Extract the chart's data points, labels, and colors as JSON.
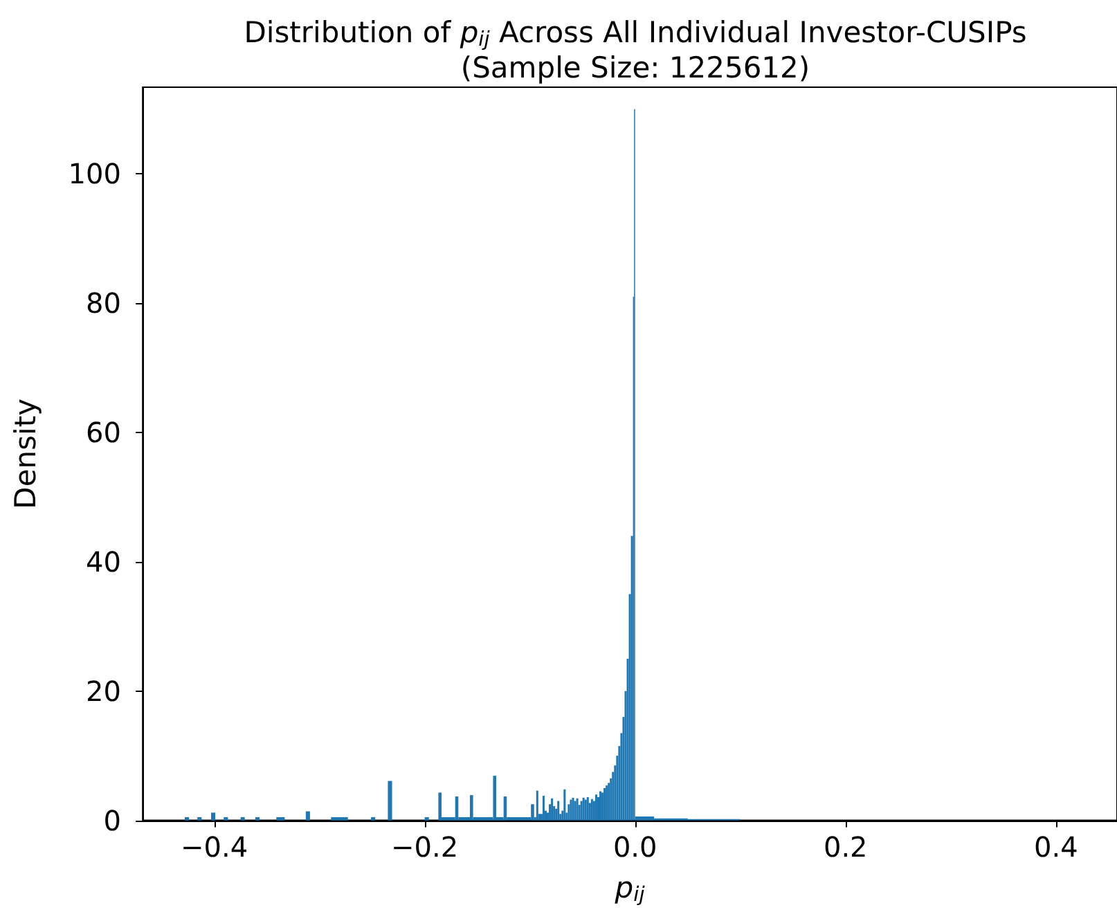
{
  "chart_data": {
    "type": "histogram",
    "title": "Distribution of p$_{ij}$ Across All Individual Investor-CUSIPs\n(Sample Size: 1225612)",
    "xlabel": "p$_{ij}$",
    "ylabel": "Density",
    "color": "#1f77b4",
    "bins": [
      -0.428,
      -0.424,
      -0.416,
      -0.412,
      -0.403,
      -0.399,
      -0.391,
      -0.387,
      -0.375,
      -0.371,
      -0.361,
      -0.357,
      -0.341,
      -0.333,
      -0.313,
      -0.309,
      -0.289,
      -0.273,
      -0.251,
      -0.247,
      -0.235,
      -0.231,
      -0.2,
      -0.196,
      -0.187,
      -0.184,
      -0.171,
      -0.168,
      -0.157,
      -0.154,
      -0.135,
      -0.132,
      -0.125,
      -0.122,
      -0.099,
      -0.096,
      -0.094,
      -0.092,
      -0.088,
      -0.086,
      -0.084,
      -0.082,
      -0.08,
      -0.078,
      -0.076,
      -0.074,
      -0.072,
      -0.07,
      -0.068,
      -0.066,
      -0.064,
      -0.062,
      -0.06,
      -0.058,
      -0.056,
      -0.054,
      -0.052,
      -0.05,
      -0.048,
      -0.046,
      -0.044,
      -0.042,
      -0.04,
      -0.038,
      -0.036,
      -0.034,
      -0.032,
      -0.03,
      -0.028,
      -0.026,
      -0.024,
      -0.022,
      -0.02,
      -0.018,
      -0.016,
      -0.014,
      -0.012,
      -0.01,
      -0.008,
      -0.006,
      -0.004,
      -0.002,
      -0.001,
      0,
      0.018,
      0.05,
      0.1
    ],
    "values": [
      0.5,
      0,
      0.5,
      0,
      1.2,
      0,
      0.5,
      0,
      0.5,
      0,
      0.5,
      0,
      0.5,
      0,
      1.4,
      0,
      0.5,
      0,
      0.5,
      0,
      6.1,
      0,
      0.5,
      0,
      4.3,
      0.5,
      3.7,
      0.5,
      3.9,
      0.5,
      6.9,
      0.5,
      3.7,
      0.5,
      2.5,
      0.5,
      4.6,
      1.0,
      3.8,
      1.5,
      1.2,
      2.5,
      3.4,
      2.2,
      1.8,
      3.0,
      1.0,
      1.5,
      4.8,
      1.2,
      2.5,
      3.2,
      3.5,
      3.0,
      3.4,
      2.4,
      3.0,
      3.5,
      3.2,
      3.6,
      2.7,
      3.3,
      3.0,
      4.0,
      3.6,
      4.5,
      4.3,
      5.0,
      5.4,
      5.8,
      6.5,
      7.5,
      8.5,
      10,
      11.5,
      13.5,
      16,
      20,
      25,
      35,
      44,
      81,
      110,
      0.6,
      0.3,
      0.2
    ],
    "xlim": [
      -0.468,
      0.458
    ],
    "xticks": [
      {
        "value": -0.4,
        "label": "−0.4"
      },
      {
        "value": -0.2,
        "label": "−0.2"
      },
      {
        "value": 0,
        "label": "0.0"
      },
      {
        "value": 0.2,
        "label": "0.2"
      },
      {
        "value": 0.4,
        "label": "0.4"
      }
    ],
    "ylim": [
      0,
      113.4
    ],
    "yticks": [
      0,
      20,
      40,
      60,
      80,
      100
    ],
    "grid": false
  }
}
